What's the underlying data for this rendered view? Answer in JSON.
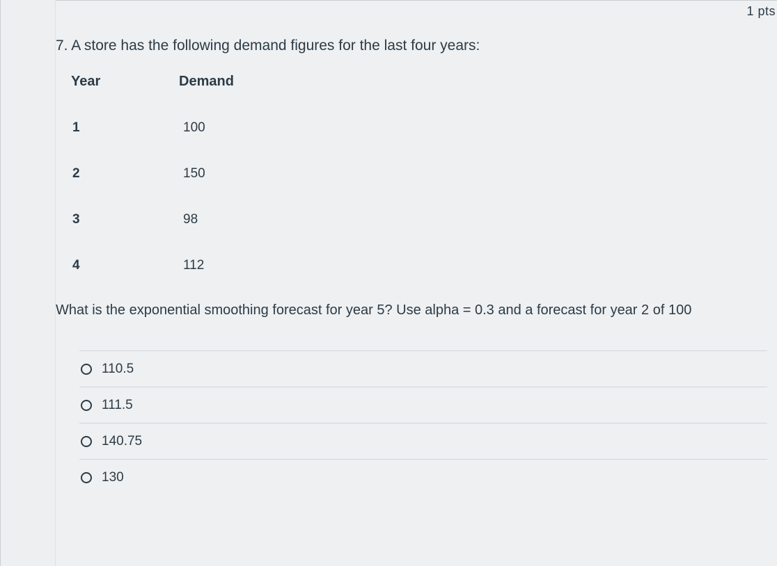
{
  "meta": {
    "points_label": "1 pts"
  },
  "question": {
    "number_and_text": "7. A store has the following demand figures for the last four years:",
    "table": {
      "headers": {
        "year": "Year",
        "demand": "Demand"
      },
      "rows": [
        {
          "year": "1",
          "demand": "100"
        },
        {
          "year": "2",
          "demand": "150"
        },
        {
          "year": "3",
          "demand": "98"
        },
        {
          "year": "4",
          "demand": "112"
        }
      ]
    },
    "followup_text": "What is the exponential smoothing forecast for year 5? Use alpha = 0.3 and a forecast for year 2 of 100"
  },
  "options": [
    {
      "label": "110.5"
    },
    {
      "label": "111.5"
    },
    {
      "label": "140.75"
    },
    {
      "label": "130"
    }
  ]
}
